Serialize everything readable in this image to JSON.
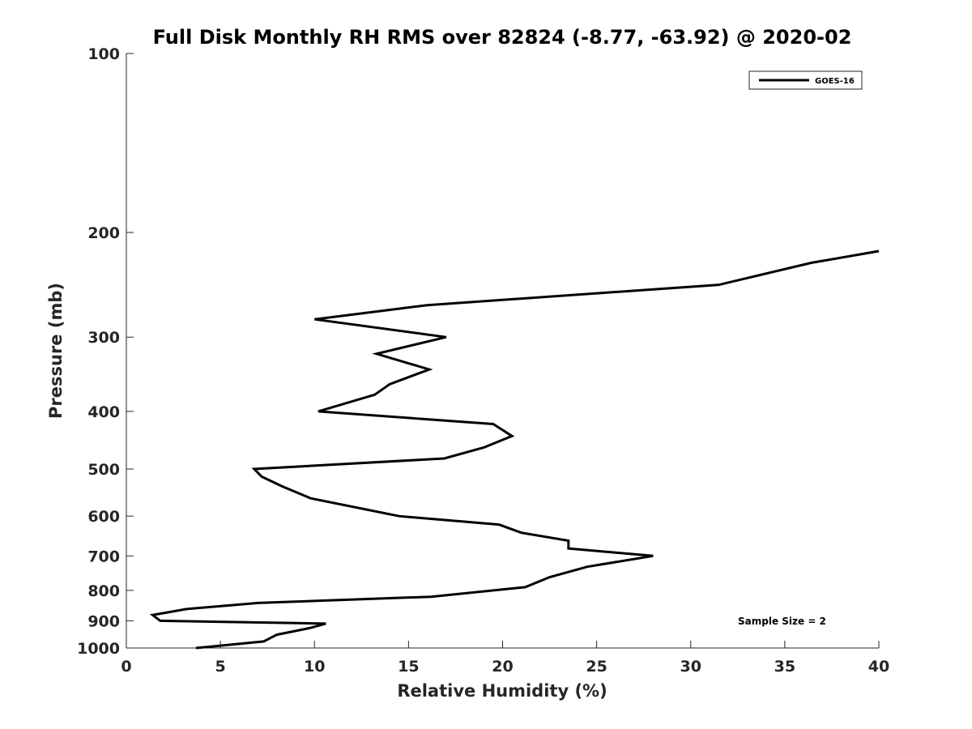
{
  "chart_data": {
    "type": "line",
    "title": "Full Disk Monthly RH RMS over 82824 (-8.77, -63.92) @ 2020-02",
    "xlabel": "Relative Humidity (%)",
    "ylabel": "Pressure (mb)",
    "xlim": [
      0,
      40
    ],
    "ylim": [
      100,
      1000
    ],
    "yscale": "log",
    "y_reversed": true,
    "x_ticks": [
      0,
      5,
      10,
      15,
      20,
      25,
      30,
      35,
      40
    ],
    "x_tick_labels": [
      "0",
      "5",
      "10",
      "15",
      "20",
      "25",
      "30",
      "35",
      "40"
    ],
    "y_ticks": [
      100,
      200,
      300,
      400,
      500,
      600,
      700,
      800,
      900,
      1000
    ],
    "y_tick_labels": [
      "100",
      "200",
      "300",
      "400",
      "500",
      "600",
      "700",
      "800",
      "900",
      "1000"
    ],
    "grid": false,
    "legend_position": "top-right",
    "series": [
      {
        "name": "GOES-16",
        "color": "#000000",
        "points": [
          [
            40.0,
            215
          ],
          [
            36.4,
            225
          ],
          [
            31.5,
            245
          ],
          [
            16.0,
            265
          ],
          [
            10.0,
            280
          ],
          [
            17.0,
            300
          ],
          [
            13.3,
            320
          ],
          [
            16.1,
            340
          ],
          [
            14.0,
            360
          ],
          [
            13.2,
            375
          ],
          [
            10.2,
            400
          ],
          [
            19.5,
            420
          ],
          [
            20.5,
            440
          ],
          [
            19.0,
            460
          ],
          [
            16.9,
            480
          ],
          [
            6.8,
            500
          ],
          [
            7.2,
            515
          ],
          [
            8.3,
            535
          ],
          [
            9.8,
            560
          ],
          [
            14.5,
            600
          ],
          [
            19.8,
            620
          ],
          [
            21.0,
            640
          ],
          [
            23.5,
            660
          ],
          [
            23.5,
            680
          ],
          [
            28.0,
            700
          ],
          [
            24.5,
            730
          ],
          [
            22.5,
            760
          ],
          [
            21.2,
            790
          ],
          [
            16.2,
            820
          ],
          [
            7.0,
            840
          ],
          [
            3.2,
            860
          ],
          [
            1.4,
            880
          ],
          [
            1.8,
            900
          ],
          [
            10.6,
            910
          ],
          [
            9.8,
            925
          ],
          [
            8.0,
            950
          ],
          [
            7.3,
            975
          ],
          [
            3.7,
            1000
          ]
        ]
      }
    ],
    "annotations": [
      "Sample Size = 2"
    ]
  }
}
